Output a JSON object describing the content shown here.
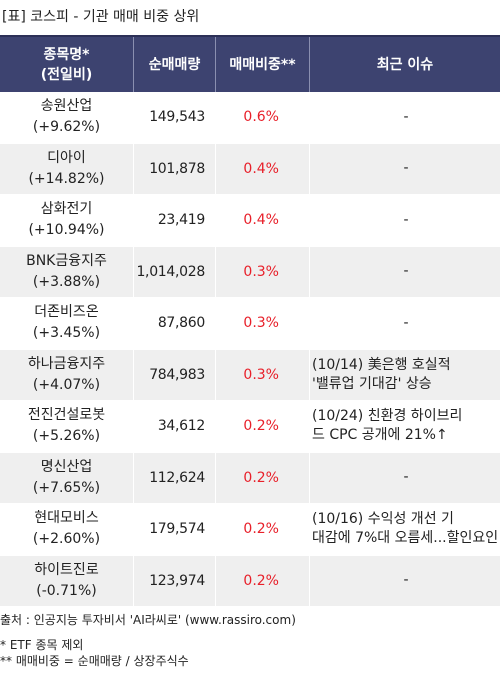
{
  "title": "[표] 코스피 - 기관 매매 비중 상위",
  "header": {
    "name_line1": "종목명*",
    "name_line2": "(전일비)",
    "volume": "순매매량",
    "ratio": "매매비중**",
    "issue": "최근 이슈"
  },
  "rows": [
    {
      "name": "송원산업",
      "change": "(+9.62%)",
      "volume": "149,543",
      "ratio": "0.6%",
      "issue": "-"
    },
    {
      "name": "디아이",
      "change": "(+14.82%)",
      "volume": "101,878",
      "ratio": "0.4%",
      "issue": "-"
    },
    {
      "name": "삼화전기",
      "change": "(+10.94%)",
      "volume": "23,419",
      "ratio": "0.4%",
      "issue": "-"
    },
    {
      "name": "BNK금융지주",
      "change": "(+3.88%)",
      "volume": "1,014,028",
      "ratio": "0.3%",
      "issue": "-"
    },
    {
      "name": "더존비즈온",
      "change": "(+3.45%)",
      "volume": "87,860",
      "ratio": "0.3%",
      "issue": "-"
    },
    {
      "name": "하나금융지주",
      "change": "(+4.07%)",
      "volume": "784,983",
      "ratio": "0.3%",
      "issue": "(10/14) 美은행 호실적\n'밸류업 기대감' 상승"
    },
    {
      "name": "전진건설로봇",
      "change": "(+5.26%)",
      "volume": "34,612",
      "ratio": "0.2%",
      "issue": "(10/24) 친환경 하이브리\n드 CPC 공개에 21%↑"
    },
    {
      "name": "명신산업",
      "change": "(+7.65%)",
      "volume": "112,624",
      "ratio": "0.2%",
      "issue": "-"
    },
    {
      "name": "현대모비스",
      "change": "(+2.60%)",
      "volume": "179,574",
      "ratio": "0.2%",
      "issue": "(10/16) 수익성 개선 기\n대감에 7%대 오름세...할인요인"
    },
    {
      "name": "하이트진로",
      "change": "(-0.71%)",
      "volume": "123,974",
      "ratio": "0.2%",
      "issue": "-"
    }
  ],
  "footer": {
    "source": "출처 : 인공지능 투자비서 'AI라씨로' (www.rassiro.com)",
    "note1": "* ETF 종목 제외",
    "note2": "** 매매비중 = 순매매량 / 상장주식수"
  },
  "colors": {
    "header_bg": "#3d4370",
    "ratio_text": "#e8202a",
    "stripe": "#efefef"
  }
}
